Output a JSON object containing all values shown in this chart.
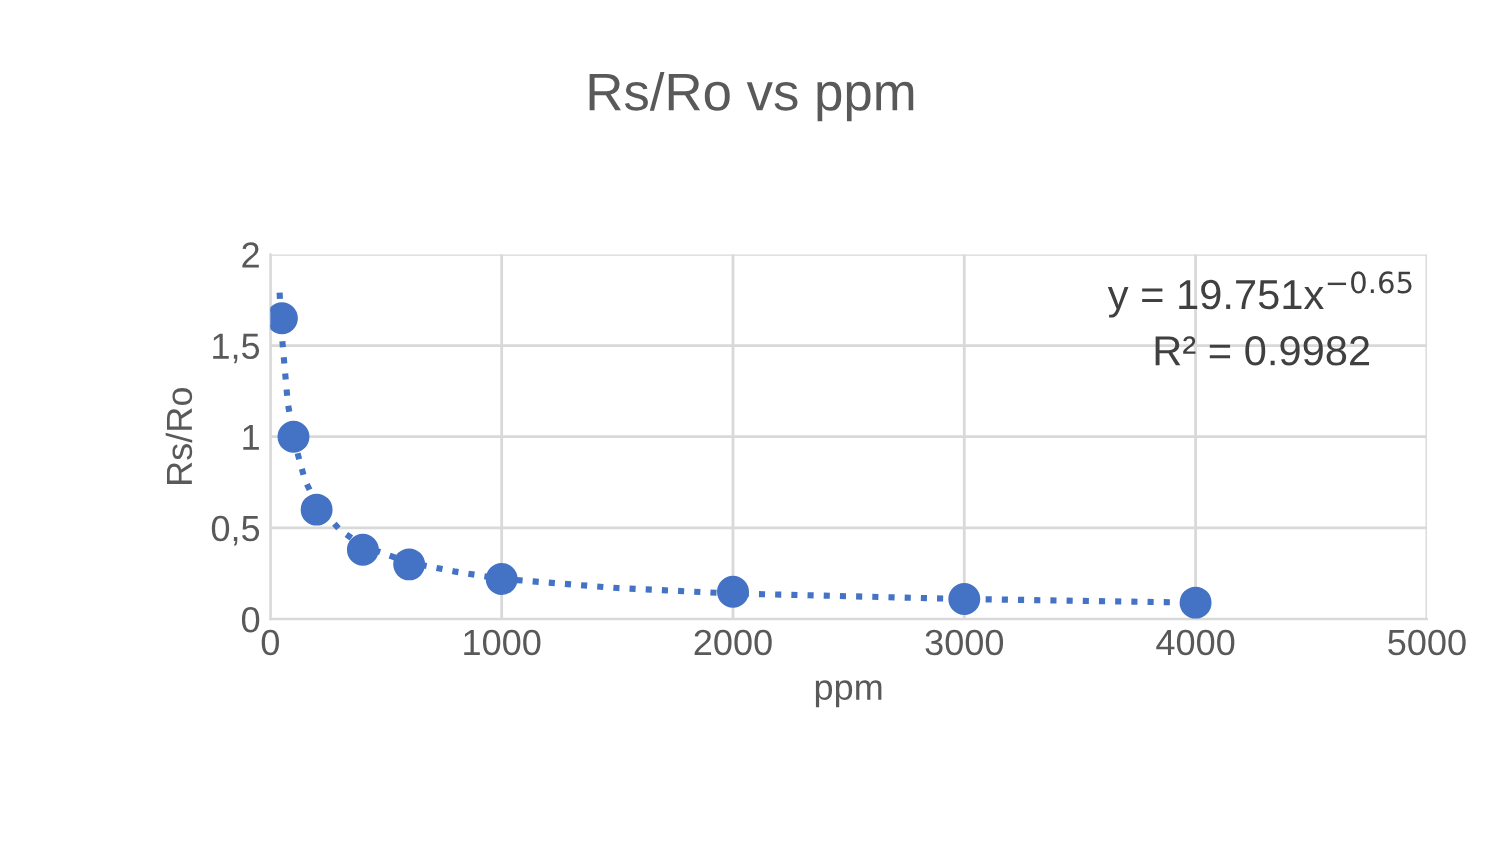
{
  "chart_data": {
    "type": "scatter",
    "title": "Rs/Ro vs ppm",
    "xlabel": "ppm",
    "ylabel": "Rs/Ro",
    "x": [
      50,
      100,
      200,
      400,
      600,
      1000,
      2000,
      3000,
      4000
    ],
    "series": [
      {
        "color": "#4472c4",
        "marker": "circle",
        "values": [
          1.65,
          1.0,
          0.6,
          0.38,
          0.3,
          0.22,
          0.15,
          0.11,
          0.09
        ]
      },
      {
        "type": "line",
        "color": "#4472c4",
        "line_style": "dotted",
        "marker": "none",
        "x": [
          40,
          50,
          75,
          100,
          150,
          200,
          300,
          400,
          600,
          800,
          1000,
          1500,
          2000,
          3000,
          4000
        ],
        "values": [
          1.79,
          1.55,
          1.19,
          0.99,
          0.76,
          0.63,
          0.49,
          0.4,
          0.31,
          0.26,
          0.22,
          0.17,
          0.14,
          0.11,
          0.09
        ]
      }
    ],
    "xlim": [
      0,
      5000
    ],
    "xticks": [
      0,
      1000,
      2000,
      3000,
      4000,
      5000
    ],
    "ylim": [
      0,
      2
    ],
    "yticks": [
      0,
      {
        "value": 0.5,
        "label": "0,5"
      },
      1,
      {
        "value": 1.5,
        "label": "1,5"
      },
      2
    ],
    "grid": true,
    "annotations": [
      "y = 19.751x$^{−0.65}$",
      "R² = 0.9982"
    ]
  }
}
